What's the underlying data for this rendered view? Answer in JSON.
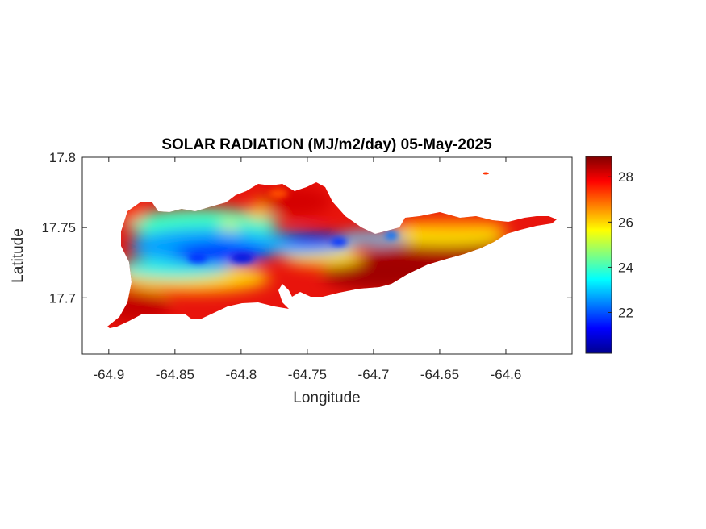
{
  "figure": {
    "title": "SOLAR RADIATION (MJ/m2/day) 05-May-2025",
    "xlabel": "Longitude",
    "ylabel": "Latitude"
  },
  "chart_data": {
    "type": "heatmap",
    "title": "SOLAR RADIATION (MJ/m2/day) 05-May-2025",
    "xlabel": "Longitude",
    "ylabel": "Latitude",
    "xlim": [
      -64.92,
      -64.55
    ],
    "ylim": [
      17.66,
      17.8
    ],
    "x_ticks": [
      -64.9,
      -64.85,
      -64.8,
      -64.75,
      -64.7,
      -64.65,
      -64.6
    ],
    "x_tick_labels": [
      "-64.9",
      "-64.85",
      "-64.8",
      "-64.75",
      "-64.7",
      "-64.65",
      "-64.6"
    ],
    "y_ticks": [
      17.7,
      17.75,
      17.8
    ],
    "y_tick_labels": [
      "17.7",
      "17.75",
      "17.8"
    ],
    "colorbar": {
      "range": [
        20.2,
        28.9
      ],
      "ticks": [
        22,
        24,
        26,
        28
      ],
      "tick_labels": [
        "22",
        "24",
        "26",
        "28"
      ],
      "colormap": "jet"
    },
    "grid": false
  }
}
